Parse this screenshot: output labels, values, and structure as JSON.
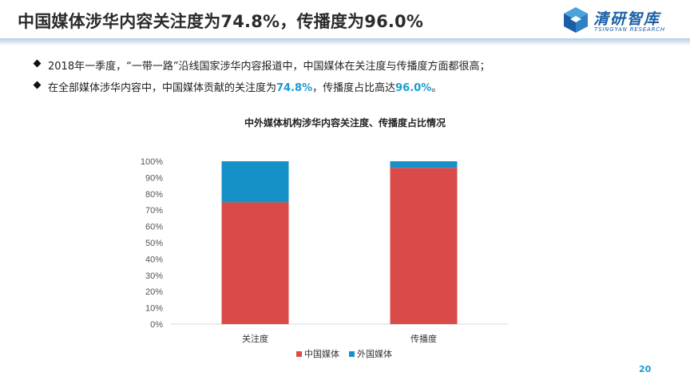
{
  "header": {
    "title": "中国媒体涉华内容关注度为74.8%，传播度为96.0%",
    "logo_cn": "清研智库",
    "logo_en": "TSINGYAN RESEARCH"
  },
  "bullets": [
    {
      "pre": "2018年一季度，“一带一路”沿线国家涉华内容报道中，中国媒体在关注度与传播度方面都很高；"
    },
    {
      "pre": "在全部媒体涉华内容中，中国媒体贡献的关注度为",
      "v1": "74.8%",
      "mid": "，传播度占比高达",
      "v2": "96.0%",
      "post": "。"
    }
  ],
  "page_number": "20",
  "colors": {
    "china": "#d94b48",
    "foreign": "#1591c7",
    "accent": "#1b9ad0"
  },
  "chart_data": {
    "type": "bar",
    "stacked": true,
    "title": "中外媒体机构涉华内容关注度、传播度占比情况",
    "categories": [
      "关注度",
      "传播度"
    ],
    "series": [
      {
        "name": "中国媒体",
        "values": [
          74.8,
          96.0
        ]
      },
      {
        "name": "外国媒体",
        "values": [
          25.2,
          4.0
        ]
      }
    ],
    "ylim": [
      0,
      100
    ],
    "yticks": [
      "0%",
      "10%",
      "20%",
      "30%",
      "40%",
      "50%",
      "60%",
      "70%",
      "80%",
      "90%",
      "100%"
    ],
    "legend": "bottom",
    "grid": false
  }
}
